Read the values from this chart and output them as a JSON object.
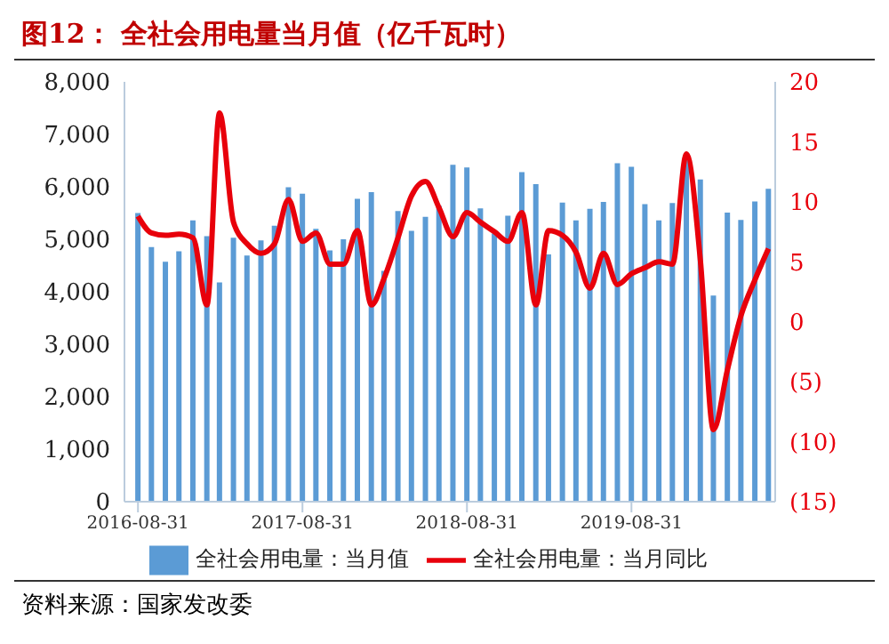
{
  "chart_data": {
    "type": "bar",
    "title": "图12：  全社会用电量当月值（亿千瓦时）",
    "x": [
      "2016-08-31",
      "2016-09-30",
      "2016-10-31",
      "2016-11-30",
      "2016-12-31",
      "2017-01-31",
      "2017-02-28",
      "2017-03-31",
      "2017-04-30",
      "2017-05-31",
      "2017-06-30",
      "2017-07-31",
      "2017-08-31",
      "2017-09-30",
      "2017-10-31",
      "2017-11-30",
      "2017-12-31",
      "2018-01-31",
      "2018-02-28",
      "2018-03-31",
      "2018-04-30",
      "2018-05-31",
      "2018-06-30",
      "2018-07-31",
      "2018-08-31",
      "2018-09-30",
      "2018-10-31",
      "2018-11-30",
      "2018-12-31",
      "2019-01-31",
      "2019-02-28",
      "2019-03-31",
      "2019-04-30",
      "2019-05-31",
      "2019-06-30",
      "2019-07-31",
      "2019-08-31",
      "2019-09-30",
      "2019-10-31",
      "2019-11-30",
      "2019-12-31",
      "2020-01-31",
      "2020-02-29",
      "2020-03-31",
      "2020-04-30",
      "2020-05-31",
      "2020-06-30"
    ],
    "series": [
      {
        "name": "全社会用电量：当月值",
        "color": "#5b9bd5",
        "values": [
          5500,
          4850,
          4570,
          4770,
          5360,
          5060,
          4180,
          5030,
          4690,
          4980,
          5260,
          5990,
          5870,
          5200,
          4790,
          5000,
          5770,
          5900,
          4400,
          5540,
          5160,
          5430,
          5640,
          6420,
          6370,
          5590,
          5110,
          5450,
          6280,
          6050,
          4710,
          5700,
          5360,
          5580,
          5710,
          6450,
          6380,
          5670,
          5360,
          5690,
          6520,
          6140,
          3930,
          5510,
          5370,
          5720,
          5960
        ]
      },
      {
        "name": "全社会用电量：当月同比",
        "type": "line",
        "axis": "y2",
        "color": "#e8000b",
        "values": [
          8.8,
          7.4,
          7.2,
          7.3,
          7.0,
          1.4,
          17.4,
          8.3,
          6.5,
          5.7,
          6.5,
          10.2,
          6.7,
          7.4,
          4.8,
          4.8,
          7.6,
          1.4,
          3.6,
          7.0,
          10.5,
          11.7,
          9.5,
          7.1,
          9.1,
          8.3,
          7.5,
          6.7,
          9.1,
          1.4,
          7.6,
          7.2,
          5.8,
          2.8,
          5.7,
          3.1,
          4.0,
          4.5,
          5.0,
          4.8,
          14.0,
          5.1,
          -9.0,
          -4.0,
          0.5,
          3.5,
          6.1
        ]
      }
    ],
    "xlim": [
      "2016-08-01",
      "2020-07-15"
    ],
    "xticks": [
      {
        "value": "2016-08-31",
        "label": "2016-08-31"
      },
      {
        "value": "2017-08-31",
        "label": "2017-08-31"
      },
      {
        "value": "2018-08-31",
        "label": "2018-08-31"
      },
      {
        "value": "2019-08-31",
        "label": "2019-08-31"
      }
    ],
    "ylim": [
      0,
      8000
    ],
    "yticks": [
      0,
      {
        "value": 1000,
        "label": "1,000"
      },
      {
        "value": 2000,
        "label": "2,000"
      },
      {
        "value": 3000,
        "label": "3,000"
      },
      {
        "value": 4000,
        "label": "4,000"
      },
      {
        "value": 5000,
        "label": "5,000"
      },
      {
        "value": 6000,
        "label": "6,000"
      },
      {
        "value": 7000,
        "label": "7,000"
      },
      {
        "value": 8000,
        "label": "8,000"
      }
    ],
    "y2lim": [
      -15,
      20
    ],
    "y2ticks": [
      {
        "value": -15,
        "label": "(15)"
      },
      {
        "value": -10,
        "label": "(10)"
      },
      {
        "value": -5,
        "label": "(5)"
      },
      0,
      5,
      10,
      15,
      20
    ],
    "legend": "bottom",
    "marker": "none",
    "line_style": "solid",
    "annotations": [
      "资料来源：国家发改委"
    ]
  }
}
